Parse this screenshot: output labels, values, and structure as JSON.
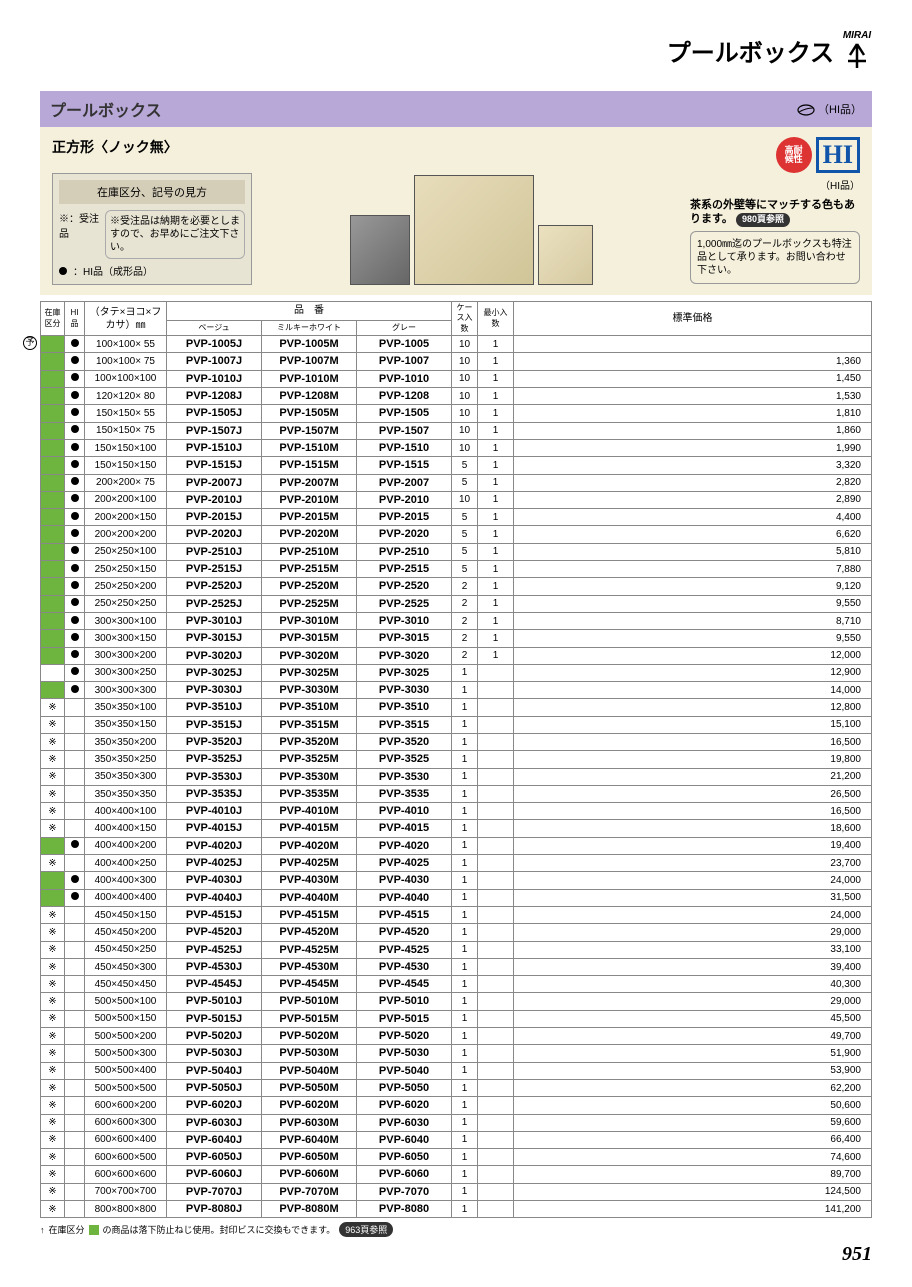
{
  "header": {
    "brand": "MIRAI",
    "title": "プールボックス"
  },
  "section": {
    "title": "プールボックス",
    "hi_suffix": "（HI品）"
  },
  "product": {
    "shape_label": "正方形〈ノック無〉",
    "legend_title": "在庫区分、記号の見方",
    "legend_order_sym": "※：受注品",
    "legend_order_desc": "※受注品は納期を必要としますので、お早めにご注文下さい。",
    "legend_hi": "：HI品（成形品）",
    "badge_red_l1": "高耐",
    "badge_red_l2": "候性",
    "badge_hi": "HI",
    "hi_sub": "（HI品）",
    "right_note": "茶系の外壁等にマッチする色もあります。",
    "right_pill": "980頁参照",
    "right_box": "1,000㎜迄のプールボックスも特注品として承ります。お問い合わせ下さい。"
  },
  "table": {
    "headers": {
      "stock": "在庫区分",
      "hi": "HI品",
      "dim": "（タテ×ヨコ×フカサ）㎜",
      "part": "品　番",
      "beige": "ベージュ",
      "milky": "ミルキーホワイト",
      "grey": "グレー",
      "case": "ケース入 数",
      "min": "最小入数",
      "price": "標準価格"
    },
    "rows": [
      {
        "s": "g",
        "y": true,
        "h": true,
        "d": "100×100× 55",
        "b": "PVP-1005J",
        "m": "PVP-1005M",
        "g": "PVP-1005",
        "c": "10",
        "n": "1",
        "p": ""
      },
      {
        "s": "g",
        "h": true,
        "d": "100×100× 75",
        "b": "PVP-1007J",
        "m": "PVP-1007M",
        "g": "PVP-1007",
        "c": "10",
        "n": "1",
        "p": "1,360"
      },
      {
        "s": "g",
        "h": true,
        "d": "100×100×100",
        "b": "PVP-1010J",
        "m": "PVP-1010M",
        "g": "PVP-1010",
        "c": "10",
        "n": "1",
        "p": "1,450"
      },
      {
        "s": "g",
        "h": true,
        "d": "120×120× 80",
        "b": "PVP-1208J",
        "m": "PVP-1208M",
        "g": "PVP-1208",
        "c": "10",
        "n": "1",
        "p": "1,530"
      },
      {
        "s": "g",
        "h": true,
        "d": "150×150× 55",
        "b": "PVP-1505J",
        "m": "PVP-1505M",
        "g": "PVP-1505",
        "c": "10",
        "n": "1",
        "p": "1,810"
      },
      {
        "s": "g",
        "h": true,
        "d": "150×150× 75",
        "b": "PVP-1507J",
        "m": "PVP-1507M",
        "g": "PVP-1507",
        "c": "10",
        "n": "1",
        "p": "1,860"
      },
      {
        "s": "g",
        "h": true,
        "d": "150×150×100",
        "b": "PVP-1510J",
        "m": "PVP-1510M",
        "g": "PVP-1510",
        "c": "10",
        "n": "1",
        "p": "1,990"
      },
      {
        "s": "g",
        "h": true,
        "d": "150×150×150",
        "b": "PVP-1515J",
        "m": "PVP-1515M",
        "g": "PVP-1515",
        "c": "5",
        "n": "1",
        "p": "3,320"
      },
      {
        "s": "g",
        "h": true,
        "d": "200×200× 75",
        "b": "PVP-2007J",
        "m": "PVP-2007M",
        "g": "PVP-2007",
        "c": "5",
        "n": "1",
        "p": "2,820"
      },
      {
        "s": "g",
        "h": true,
        "d": "200×200×100",
        "b": "PVP-2010J",
        "m": "PVP-2010M",
        "g": "PVP-2010",
        "c": "10",
        "n": "1",
        "p": "2,890"
      },
      {
        "s": "g",
        "h": true,
        "d": "200×200×150",
        "b": "PVP-2015J",
        "m": "PVP-2015M",
        "g": "PVP-2015",
        "c": "5",
        "n": "1",
        "p": "4,400"
      },
      {
        "s": "g",
        "h": true,
        "d": "200×200×200",
        "b": "PVP-2020J",
        "m": "PVP-2020M",
        "g": "PVP-2020",
        "c": "5",
        "n": "1",
        "p": "6,620"
      },
      {
        "s": "g",
        "h": true,
        "d": "250×250×100",
        "b": "PVP-2510J",
        "m": "PVP-2510M",
        "g": "PVP-2510",
        "c": "5",
        "n": "1",
        "p": "5,810"
      },
      {
        "s": "g",
        "h": true,
        "d": "250×250×150",
        "b": "PVP-2515J",
        "m": "PVP-2515M",
        "g": "PVP-2515",
        "c": "5",
        "n": "1",
        "p": "7,880"
      },
      {
        "s": "g",
        "h": true,
        "d": "250×250×200",
        "b": "PVP-2520J",
        "m": "PVP-2520M",
        "g": "PVP-2520",
        "c": "2",
        "n": "1",
        "p": "9,120"
      },
      {
        "s": "g",
        "h": true,
        "d": "250×250×250",
        "b": "PVP-2525J",
        "m": "PVP-2525M",
        "g": "PVP-2525",
        "c": "2",
        "n": "1",
        "p": "9,550"
      },
      {
        "s": "g",
        "h": true,
        "d": "300×300×100",
        "b": "PVP-3010J",
        "m": "PVP-3010M",
        "g": "PVP-3010",
        "c": "2",
        "n": "1",
        "p": "8,710"
      },
      {
        "s": "g",
        "h": true,
        "d": "300×300×150",
        "b": "PVP-3015J",
        "m": "PVP-3015M",
        "g": "PVP-3015",
        "c": "2",
        "n": "1",
        "p": "9,550"
      },
      {
        "s": "g",
        "h": true,
        "d": "300×300×200",
        "b": "PVP-3020J",
        "m": "PVP-3020M",
        "g": "PVP-3020",
        "c": "2",
        "n": "1",
        "p": "12,000"
      },
      {
        "s": "",
        "h": true,
        "d": "300×300×250",
        "b": "PVP-3025J",
        "m": "PVP-3025M",
        "g": "PVP-3025",
        "c": "1",
        "n": "",
        "p": "12,900"
      },
      {
        "s": "g",
        "h": true,
        "d": "300×300×300",
        "b": "PVP-3030J",
        "m": "PVP-3030M",
        "g": "PVP-3030",
        "c": "1",
        "n": "",
        "p": "14,000"
      },
      {
        "s": "※",
        "h": false,
        "d": "350×350×100",
        "b": "PVP-3510J",
        "m": "PVP-3510M",
        "g": "PVP-3510",
        "c": "1",
        "n": "",
        "p": "12,800"
      },
      {
        "s": "※",
        "h": false,
        "d": "350×350×150",
        "b": "PVP-3515J",
        "m": "PVP-3515M",
        "g": "PVP-3515",
        "c": "1",
        "n": "",
        "p": "15,100"
      },
      {
        "s": "※",
        "h": false,
        "d": "350×350×200",
        "b": "PVP-3520J",
        "m": "PVP-3520M",
        "g": "PVP-3520",
        "c": "1",
        "n": "",
        "p": "16,500"
      },
      {
        "s": "※",
        "h": false,
        "d": "350×350×250",
        "b": "PVP-3525J",
        "m": "PVP-3525M",
        "g": "PVP-3525",
        "c": "1",
        "n": "",
        "p": "19,800"
      },
      {
        "s": "※",
        "h": false,
        "d": "350×350×300",
        "b": "PVP-3530J",
        "m": "PVP-3530M",
        "g": "PVP-3530",
        "c": "1",
        "n": "",
        "p": "21,200"
      },
      {
        "s": "※",
        "h": false,
        "d": "350×350×350",
        "b": "PVP-3535J",
        "m": "PVP-3535M",
        "g": "PVP-3535",
        "c": "1",
        "n": "",
        "p": "26,500"
      },
      {
        "s": "※",
        "h": false,
        "d": "400×400×100",
        "b": "PVP-4010J",
        "m": "PVP-4010M",
        "g": "PVP-4010",
        "c": "1",
        "n": "",
        "p": "16,500"
      },
      {
        "s": "※",
        "h": false,
        "d": "400×400×150",
        "b": "PVP-4015J",
        "m": "PVP-4015M",
        "g": "PVP-4015",
        "c": "1",
        "n": "",
        "p": "18,600"
      },
      {
        "s": "g",
        "h": true,
        "d": "400×400×200",
        "b": "PVP-4020J",
        "m": "PVP-4020M",
        "g": "PVP-4020",
        "c": "1",
        "n": "",
        "p": "19,400"
      },
      {
        "s": "※",
        "h": false,
        "d": "400×400×250",
        "b": "PVP-4025J",
        "m": "PVP-4025M",
        "g": "PVP-4025",
        "c": "1",
        "n": "",
        "p": "23,700"
      },
      {
        "s": "g",
        "h": true,
        "d": "400×400×300",
        "b": "PVP-4030J",
        "m": "PVP-4030M",
        "g": "PVP-4030",
        "c": "1",
        "n": "",
        "p": "24,000"
      },
      {
        "s": "g",
        "h": true,
        "d": "400×400×400",
        "b": "PVP-4040J",
        "m": "PVP-4040M",
        "g": "PVP-4040",
        "c": "1",
        "n": "",
        "p": "31,500"
      },
      {
        "s": "※",
        "h": false,
        "d": "450×450×150",
        "b": "PVP-4515J",
        "m": "PVP-4515M",
        "g": "PVP-4515",
        "c": "1",
        "n": "",
        "p": "24,000"
      },
      {
        "s": "※",
        "h": false,
        "d": "450×450×200",
        "b": "PVP-4520J",
        "m": "PVP-4520M",
        "g": "PVP-4520",
        "c": "1",
        "n": "",
        "p": "29,000"
      },
      {
        "s": "※",
        "h": false,
        "d": "450×450×250",
        "b": "PVP-4525J",
        "m": "PVP-4525M",
        "g": "PVP-4525",
        "c": "1",
        "n": "",
        "p": "33,100"
      },
      {
        "s": "※",
        "h": false,
        "d": "450×450×300",
        "b": "PVP-4530J",
        "m": "PVP-4530M",
        "g": "PVP-4530",
        "c": "1",
        "n": "",
        "p": "39,400"
      },
      {
        "s": "※",
        "h": false,
        "d": "450×450×450",
        "b": "PVP-4545J",
        "m": "PVP-4545M",
        "g": "PVP-4545",
        "c": "1",
        "n": "",
        "p": "40,300"
      },
      {
        "s": "※",
        "h": false,
        "d": "500×500×100",
        "b": "PVP-5010J",
        "m": "PVP-5010M",
        "g": "PVP-5010",
        "c": "1",
        "n": "",
        "p": "29,000"
      },
      {
        "s": "※",
        "h": false,
        "d": "500×500×150",
        "b": "PVP-5015J",
        "m": "PVP-5015M",
        "g": "PVP-5015",
        "c": "1",
        "n": "",
        "p": "45,500"
      },
      {
        "s": "※",
        "h": false,
        "d": "500×500×200",
        "b": "PVP-5020J",
        "m": "PVP-5020M",
        "g": "PVP-5020",
        "c": "1",
        "n": "",
        "p": "49,700"
      },
      {
        "s": "※",
        "h": false,
        "d": "500×500×300",
        "b": "PVP-5030J",
        "m": "PVP-5030M",
        "g": "PVP-5030",
        "c": "1",
        "n": "",
        "p": "51,900"
      },
      {
        "s": "※",
        "h": false,
        "d": "500×500×400",
        "b": "PVP-5040J",
        "m": "PVP-5040M",
        "g": "PVP-5040",
        "c": "1",
        "n": "",
        "p": "53,900"
      },
      {
        "s": "※",
        "h": false,
        "d": "500×500×500",
        "b": "PVP-5050J",
        "m": "PVP-5050M",
        "g": "PVP-5050",
        "c": "1",
        "n": "",
        "p": "62,200"
      },
      {
        "s": "※",
        "h": false,
        "d": "600×600×200",
        "b": "PVP-6020J",
        "m": "PVP-6020M",
        "g": "PVP-6020",
        "c": "1",
        "n": "",
        "p": "50,600"
      },
      {
        "s": "※",
        "h": false,
        "d": "600×600×300",
        "b": "PVP-6030J",
        "m": "PVP-6030M",
        "g": "PVP-6030",
        "c": "1",
        "n": "",
        "p": "59,600"
      },
      {
        "s": "※",
        "h": false,
        "d": "600×600×400",
        "b": "PVP-6040J",
        "m": "PVP-6040M",
        "g": "PVP-6040",
        "c": "1",
        "n": "",
        "p": "66,400"
      },
      {
        "s": "※",
        "h": false,
        "d": "600×600×500",
        "b": "PVP-6050J",
        "m": "PVP-6050M",
        "g": "PVP-6050",
        "c": "1",
        "n": "",
        "p": "74,600"
      },
      {
        "s": "※",
        "h": false,
        "d": "600×600×600",
        "b": "PVP-6060J",
        "m": "PVP-6060M",
        "g": "PVP-6060",
        "c": "1",
        "n": "",
        "p": "89,700"
      },
      {
        "s": "※",
        "h": false,
        "d": "700×700×700",
        "b": "PVP-7070J",
        "m": "PVP-7070M",
        "g": "PVP-7070",
        "c": "1",
        "n": "",
        "p": "124,500"
      },
      {
        "s": "※",
        "h": false,
        "d": "800×800×800",
        "b": "PVP-8080J",
        "m": "PVP-8080M",
        "g": "PVP-8080",
        "c": "1",
        "n": "",
        "p": "141,200"
      }
    ]
  },
  "footnote": {
    "text1": "在庫区分",
    "text2": "の商品は落下防止ねじ使用。封印ビスに交換もできます。",
    "pill": "963頁参照"
  },
  "page_num": "951",
  "yo_char": "予"
}
